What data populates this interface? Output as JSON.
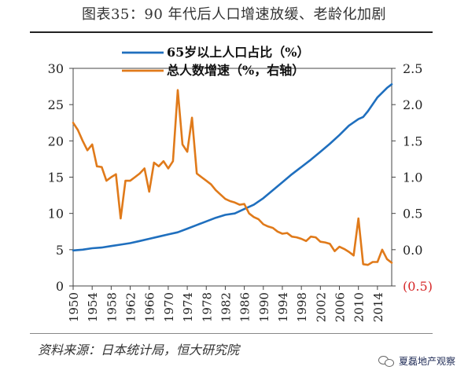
{
  "page": {
    "title": "图表35：90 年代后人口增速放缓、老龄化加剧",
    "source": "资料来源：日本统计局，恒大研究院",
    "watermark": "夏磊地产观察"
  },
  "chart_data": {
    "type": "line",
    "legend_placement": "top",
    "x_ticks": [
      "1950",
      "1954",
      "1958",
      "1962",
      "1966",
      "1970",
      "1974",
      "1978",
      "1982",
      "1986",
      "1990",
      "1994",
      "1998",
      "2002",
      "2006",
      "2010",
      "2014"
    ],
    "xlim": [
      1950,
      2017
    ],
    "left_axis": {
      "ylim": [
        0,
        30
      ],
      "ticks": [
        "0",
        "5",
        "10",
        "15",
        "20",
        "25",
        "30"
      ]
    },
    "right_axis": {
      "ylim": [
        -0.5,
        2.5
      ],
      "ticks": [
        "(0.5)",
        "0.0",
        "0.5",
        "1.0",
        "1.5",
        "2.0",
        "2.5"
      ]
    },
    "colors": {
      "aging": "#1f6fbe",
      "growth": "#e07a1a",
      "negative_tick": "#d62728"
    },
    "series": [
      {
        "name": "65岁以上人口占比（%）",
        "axis": "left",
        "x": [
          1950,
          1952,
          1954,
          1956,
          1958,
          1960,
          1962,
          1964,
          1966,
          1968,
          1970,
          1972,
          1974,
          1976,
          1978,
          1980,
          1982,
          1984,
          1986,
          1988,
          1990,
          1992,
          1994,
          1996,
          1998,
          2000,
          2002,
          2004,
          2006,
          2008,
          2010,
          2011,
          2012,
          2014,
          2016,
          2017
        ],
        "values": [
          4.9,
          5.0,
          5.2,
          5.3,
          5.5,
          5.7,
          5.9,
          6.2,
          6.5,
          6.8,
          7.1,
          7.4,
          7.9,
          8.4,
          8.9,
          9.4,
          9.8,
          10.0,
          10.6,
          11.2,
          12.1,
          13.2,
          14.3,
          15.4,
          16.4,
          17.4,
          18.5,
          19.6,
          20.8,
          22.1,
          23.0,
          23.3,
          24.1,
          26.0,
          27.3,
          27.8
        ]
      },
      {
        "name": "总人数增速（%，右轴）",
        "axis": "right",
        "x": [
          1950,
          1951,
          1952,
          1953,
          1954,
          1955,
          1956,
          1957,
          1958,
          1959,
          1960,
          1961,
          1962,
          1963,
          1964,
          1965,
          1966,
          1967,
          1968,
          1969,
          1970,
          1971,
          1972,
          1973,
          1974,
          1975,
          1976,
          1977,
          1978,
          1979,
          1980,
          1981,
          1982,
          1983,
          1984,
          1985,
          1986,
          1987,
          1988,
          1989,
          1990,
          1991,
          1992,
          1993,
          1994,
          1995,
          1996,
          1997,
          1998,
          1999,
          2000,
          2001,
          2002,
          2003,
          2004,
          2005,
          2006,
          2007,
          2008,
          2009,
          2010,
          2011,
          2012,
          2013,
          2014,
          2015,
          2016,
          2017
        ],
        "values": [
          1.75,
          1.65,
          1.5,
          1.37,
          1.45,
          1.15,
          1.14,
          0.95,
          1.0,
          1.04,
          0.43,
          0.95,
          0.95,
          1.0,
          1.05,
          1.12,
          0.8,
          1.2,
          1.15,
          1.22,
          1.12,
          1.22,
          2.2,
          1.45,
          1.35,
          1.82,
          1.05,
          1.0,
          0.95,
          0.9,
          0.82,
          0.76,
          0.7,
          0.67,
          0.65,
          0.62,
          0.63,
          0.5,
          0.45,
          0.42,
          0.35,
          0.32,
          0.3,
          0.25,
          0.22,
          0.23,
          0.18,
          0.17,
          0.15,
          0.12,
          0.18,
          0.17,
          0.11,
          0.1,
          0.08,
          -0.02,
          0.04,
          0.01,
          -0.03,
          -0.08,
          0.43,
          -0.2,
          -0.21,
          -0.17,
          -0.17,
          0.0,
          -0.13,
          -0.18
        ]
      }
    ]
  }
}
